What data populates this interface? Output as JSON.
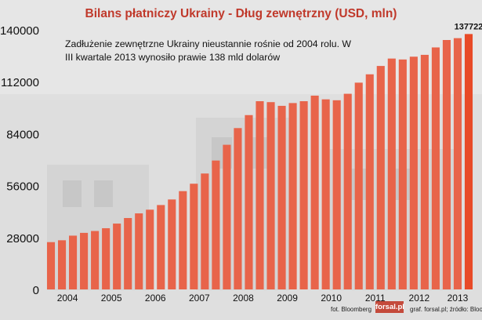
{
  "title": "Bilans płatniczy Ukrainy - Dług zewnętrzny (USD, mln)",
  "annotation": "Zadłużenie zewnętrzne Ukrainy nieustannie rośnie od 2004 rolu. W III kwartale 2013 wynosiło prawie 138 mld dolarów",
  "credits": {
    "photo": "fot. Bloomberg",
    "logo": "forsal.pl",
    "source": "graf. forsal.pl; źródło: Bloomberg"
  },
  "colors": {
    "title": "#c0392b",
    "bar": "#e8644a",
    "bar_last": "#e84a27",
    "axis_text": "#111111",
    "label_last": "#111111"
  },
  "chart_data": {
    "type": "bar",
    "title": "Bilans płatniczy Ukrainy - Dług zewnętrzny (USD, mln)",
    "xlabel": "",
    "ylabel": "",
    "ylim": [
      0,
      140000
    ],
    "yticks": [
      0,
      28000,
      56000,
      84000,
      112000,
      140000
    ],
    "ytick_labels": [
      "0",
      "28000",
      "56000",
      "84000",
      "112000",
      "140000"
    ],
    "year_labels": [
      "2004",
      "2005",
      "2006",
      "2007",
      "2008",
      "2009",
      "2010",
      "2011",
      "2012",
      "2013"
    ],
    "grid": false,
    "legend": "none",
    "categories": [
      "2004 Q1",
      "2004 Q2",
      "2004 Q3",
      "2004 Q4",
      "2005 Q1",
      "2005 Q2",
      "2005 Q3",
      "2005 Q4",
      "2006 Q1",
      "2006 Q2",
      "2006 Q3",
      "2006 Q4",
      "2007 Q1",
      "2007 Q2",
      "2007 Q3",
      "2007 Q4",
      "2008 Q1",
      "2008 Q2",
      "2008 Q3",
      "2008 Q4",
      "2009 Q1",
      "2009 Q2",
      "2009 Q3",
      "2009 Q4",
      "2010 Q1",
      "2010 Q2",
      "2010 Q3",
      "2010 Q4",
      "2011 Q1",
      "2011 Q2",
      "2011 Q3",
      "2011 Q4",
      "2012 Q1",
      "2012 Q2",
      "2012 Q3",
      "2012 Q4",
      "2013 Q1",
      "2013 Q2",
      "2013 Q3"
    ],
    "values": [
      25500,
      26500,
      29000,
      30500,
      31500,
      33000,
      35500,
      38500,
      41000,
      43000,
      45500,
      48500,
      53000,
      57000,
      62500,
      69500,
      78000,
      87000,
      94000,
      101500,
      101000,
      99000,
      100500,
      101500,
      104500,
      102500,
      102000,
      105500,
      111500,
      116000,
      120500,
      124500,
      124000,
      125500,
      126500,
      130500,
      134500,
      135500,
      137722
    ],
    "value_labels": [
      "",
      "",
      "",
      "",
      "",
      "",
      "",
      "",
      "",
      "",
      "",
      "",
      "",
      "",
      "",
      "",
      "",
      "",
      "",
      "",
      "",
      "",
      "",
      "",
      "",
      "",
      "",
      "",
      "",
      "",
      "",
      "",
      "",
      "",
      "",
      "",
      "",
      "",
      "137722"
    ]
  }
}
